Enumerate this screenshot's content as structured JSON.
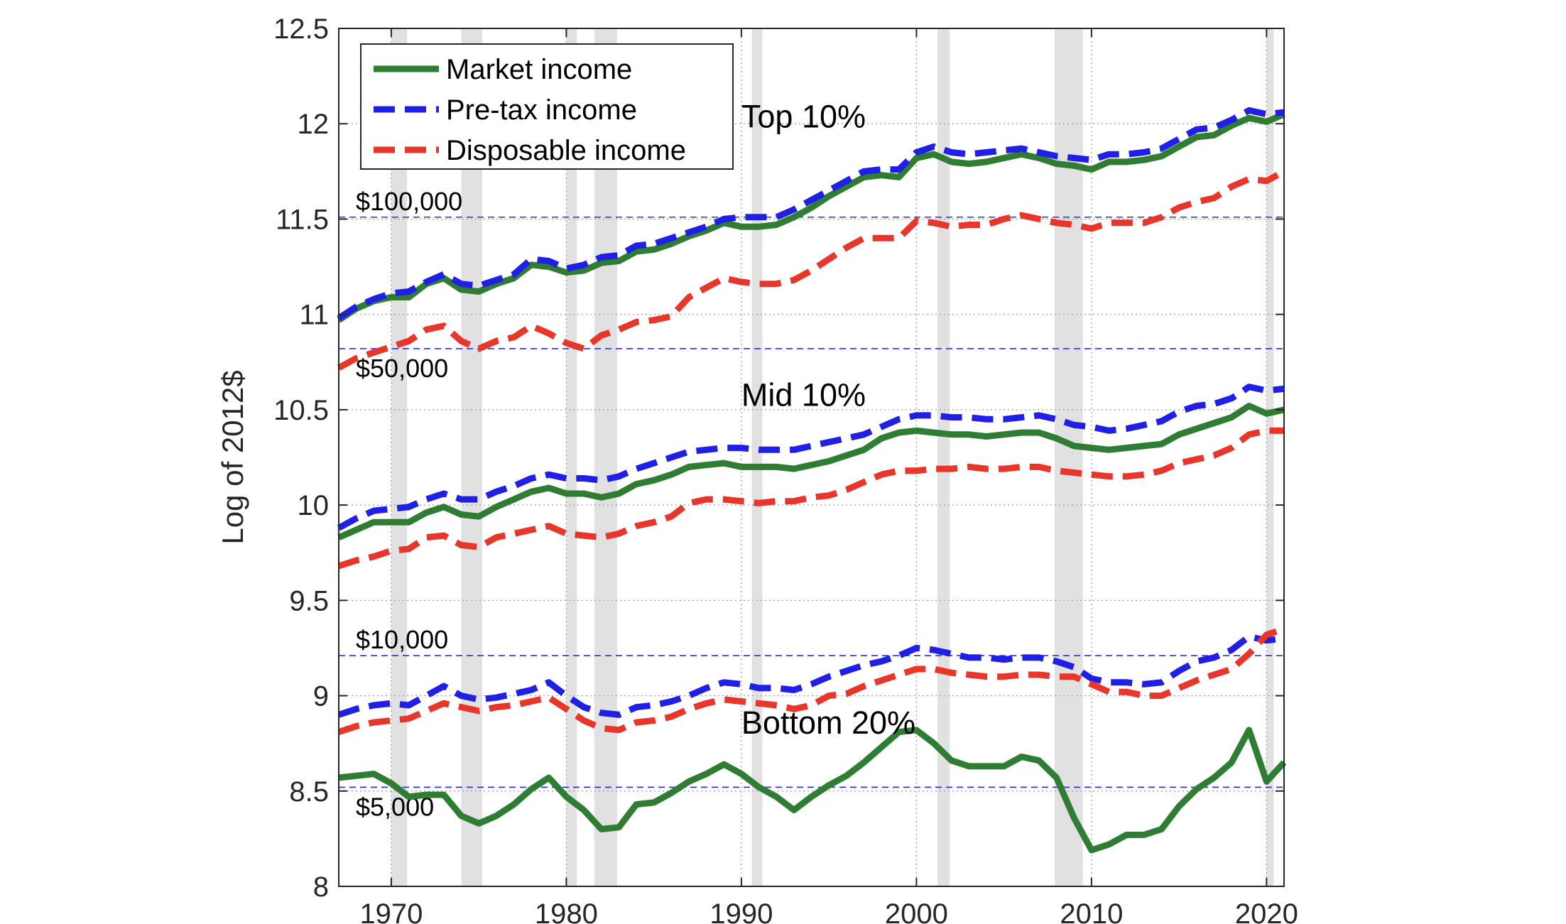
{
  "chart_data": {
    "type": "line",
    "title": "",
    "xlabel": "",
    "ylabel": "Log of 2012$",
    "xlim": [
      1967,
      2021
    ],
    "ylim": [
      8,
      12.5
    ],
    "xticks": [
      1970,
      1980,
      1990,
      2000,
      2010,
      2020
    ],
    "yticks": [
      8,
      8.5,
      9,
      9.5,
      10,
      10.5,
      11,
      11.5,
      12,
      12.5
    ],
    "ytick_labels": [
      "8",
      "8.5",
      "9",
      "9.5",
      "10",
      "10.5",
      "11",
      "11.5",
      "12",
      "12.5"
    ],
    "grid": "dotted",
    "legend_position": "top-left",
    "legend": [
      {
        "name": "Market income",
        "color": "#2e7d32",
        "style": "solid"
      },
      {
        "name": "Pre-tax income",
        "color": "#1f1fe6",
        "style": "dashed"
      },
      {
        "name": "Disposable income",
        "color": "#e8362b",
        "style": "dashed"
      }
    ],
    "recession_shading": [
      [
        1970,
        1970.9
      ],
      [
        1974,
        1975.2
      ],
      [
        1980,
        1980.6
      ],
      [
        1981.6,
        1982.9
      ],
      [
        1990.6,
        1991.2
      ],
      [
        2001.2,
        2001.9
      ],
      [
        2007.9,
        2009.5
      ],
      [
        2020.0,
        2020.4
      ]
    ],
    "reference_lines": [
      {
        "label": "$100,000",
        "y": 11.51
      },
      {
        "label": "$50,000",
        "y": 10.82
      },
      {
        "label": "$10,000",
        "y": 9.21
      },
      {
        "label": "$5,000",
        "y": 8.52
      }
    ],
    "group_labels": [
      {
        "text": "Top 10%",
        "x": 1990,
        "y": 11.98
      },
      {
        "text": "Mid 10%",
        "x": 1990,
        "y": 10.52
      },
      {
        "text": "Bottom 20%",
        "x": 1990,
        "y": 8.8
      }
    ],
    "x": [
      1967,
      1968,
      1969,
      1970,
      1971,
      1972,
      1973,
      1974,
      1975,
      1976,
      1977,
      1978,
      1979,
      1980,
      1981,
      1982,
      1983,
      1984,
      1985,
      1986,
      1987,
      1988,
      1989,
      1990,
      1991,
      1992,
      1993,
      1994,
      1995,
      1996,
      1997,
      1998,
      1999,
      2000,
      2001,
      2002,
      2003,
      2004,
      2005,
      2006,
      2007,
      2008,
      2009,
      2010,
      2011,
      2012,
      2013,
      2014,
      2015,
      2016,
      2017,
      2018,
      2019,
      2020,
      2021
    ],
    "series": [
      {
        "name": "Market income",
        "group": "Top 10%",
        "color": "#2e7d32",
        "style": "solid",
        "values": [
          10.97,
          11.03,
          11.07,
          11.09,
          11.09,
          11.16,
          11.19,
          11.13,
          11.12,
          11.16,
          11.19,
          11.26,
          11.25,
          11.22,
          11.23,
          11.27,
          11.28,
          11.33,
          11.34,
          11.37,
          11.41,
          11.44,
          11.48,
          11.46,
          11.46,
          11.47,
          11.51,
          11.56,
          11.62,
          11.67,
          11.72,
          11.73,
          11.72,
          11.82,
          11.84,
          11.8,
          11.79,
          11.8,
          11.82,
          11.84,
          11.82,
          11.79,
          11.78,
          11.76,
          11.8,
          11.8,
          11.81,
          11.83,
          11.88,
          11.93,
          11.94,
          11.99,
          12.03,
          12.01,
          12.05
        ]
      },
      {
        "name": "Pre-tax income",
        "group": "Top 10%",
        "color": "#1f1fe6",
        "style": "dashed",
        "values": [
          10.98,
          11.04,
          11.08,
          11.11,
          11.12,
          11.17,
          11.21,
          11.16,
          11.15,
          11.18,
          11.21,
          11.29,
          11.28,
          11.24,
          11.26,
          11.3,
          11.31,
          11.36,
          11.37,
          11.4,
          11.43,
          11.46,
          11.5,
          11.51,
          11.51,
          11.51,
          11.55,
          11.6,
          11.65,
          11.7,
          11.75,
          11.76,
          11.76,
          11.85,
          11.88,
          11.85,
          11.84,
          11.85,
          11.86,
          11.87,
          11.85,
          11.83,
          11.82,
          11.81,
          11.84,
          11.84,
          11.85,
          11.87,
          11.92,
          11.97,
          11.98,
          12.02,
          12.07,
          12.05,
          12.06
        ]
      },
      {
        "name": "Disposable income",
        "group": "Top 10%",
        "color": "#e8362b",
        "style": "dashed",
        "values": [
          10.72,
          10.77,
          10.8,
          10.83,
          10.86,
          10.92,
          10.94,
          10.86,
          10.82,
          10.86,
          10.88,
          10.94,
          10.9,
          10.85,
          10.82,
          10.89,
          10.92,
          10.96,
          10.97,
          10.99,
          11.09,
          11.14,
          11.19,
          11.17,
          11.16,
          11.16,
          11.18,
          11.23,
          11.29,
          11.35,
          11.4,
          11.4,
          11.4,
          11.49,
          11.48,
          11.46,
          11.47,
          11.47,
          11.5,
          11.52,
          11.5,
          11.48,
          11.47,
          11.45,
          11.48,
          11.48,
          11.48,
          11.51,
          11.56,
          11.59,
          11.61,
          11.67,
          11.71,
          11.7,
          11.75
        ]
      },
      {
        "name": "Market income",
        "group": "Mid 10%",
        "color": "#2e7d32",
        "style": "solid",
        "values": [
          9.83,
          9.87,
          9.91,
          9.91,
          9.91,
          9.96,
          9.99,
          9.95,
          9.94,
          9.99,
          10.03,
          10.07,
          10.09,
          10.06,
          10.06,
          10.04,
          10.06,
          10.11,
          10.13,
          10.16,
          10.2,
          10.21,
          10.22,
          10.2,
          10.2,
          10.2,
          10.19,
          10.21,
          10.23,
          10.26,
          10.29,
          10.35,
          10.38,
          10.39,
          10.38,
          10.37,
          10.37,
          10.36,
          10.37,
          10.38,
          10.38,
          10.35,
          10.31,
          10.3,
          10.29,
          10.3,
          10.31,
          10.32,
          10.37,
          10.4,
          10.43,
          10.46,
          10.52,
          10.48,
          10.5
        ]
      },
      {
        "name": "Pre-tax income",
        "group": "Mid 10%",
        "color": "#1f1fe6",
        "style": "dashed",
        "values": [
          9.88,
          9.93,
          9.97,
          9.98,
          9.99,
          10.03,
          10.06,
          10.03,
          10.03,
          10.07,
          10.1,
          10.14,
          10.16,
          10.14,
          10.14,
          10.13,
          10.15,
          10.19,
          10.22,
          10.25,
          10.28,
          10.29,
          10.3,
          10.3,
          10.29,
          10.29,
          10.29,
          10.31,
          10.33,
          10.35,
          10.37,
          10.41,
          10.45,
          10.47,
          10.47,
          10.46,
          10.46,
          10.45,
          10.45,
          10.46,
          10.47,
          10.45,
          10.42,
          10.41,
          10.39,
          10.4,
          10.42,
          10.44,
          10.49,
          10.52,
          10.53,
          10.56,
          10.62,
          10.6,
          10.61
        ]
      },
      {
        "name": "Disposable income",
        "group": "Mid 10%",
        "color": "#e8362b",
        "style": "dashed",
        "values": [
          9.68,
          9.71,
          9.73,
          9.76,
          9.77,
          9.83,
          9.84,
          9.79,
          9.78,
          9.83,
          9.85,
          9.87,
          9.89,
          9.85,
          9.84,
          9.83,
          9.85,
          9.89,
          9.91,
          9.94,
          10.01,
          10.03,
          10.03,
          10.02,
          10.01,
          10.02,
          10.02,
          10.04,
          10.05,
          10.08,
          10.12,
          10.16,
          10.18,
          10.18,
          10.19,
          10.19,
          10.2,
          10.19,
          10.19,
          10.2,
          10.2,
          10.18,
          10.17,
          10.16,
          10.15,
          10.15,
          10.16,
          10.18,
          10.22,
          10.24,
          10.26,
          10.3,
          10.37,
          10.39,
          10.39
        ]
      },
      {
        "name": "Pre-tax income",
        "group": "Bottom 20%",
        "color": "#1f1fe6",
        "style": "dashed",
        "values": [
          8.9,
          8.93,
          8.95,
          8.96,
          8.95,
          9.0,
          9.05,
          9.0,
          8.98,
          8.99,
          9.01,
          9.03,
          9.07,
          9.0,
          8.94,
          8.91,
          8.9,
          8.94,
          8.95,
          8.97,
          9.0,
          9.04,
          9.07,
          9.06,
          9.04,
          9.04,
          9.03,
          9.06,
          9.1,
          9.13,
          9.16,
          9.18,
          9.21,
          9.25,
          9.24,
          9.22,
          9.2,
          9.2,
          9.19,
          9.2,
          9.2,
          9.18,
          9.15,
          9.09,
          9.07,
          9.07,
          9.06,
          9.07,
          9.13,
          9.18,
          9.2,
          9.24,
          9.31,
          9.29,
          9.3
        ]
      },
      {
        "name": "Disposable income",
        "group": "Bottom 20%",
        "color": "#e8362b",
        "style": "dashed",
        "values": [
          8.81,
          8.84,
          8.86,
          8.87,
          8.88,
          8.92,
          8.96,
          8.94,
          8.92,
          8.94,
          8.95,
          8.97,
          8.99,
          8.93,
          8.87,
          8.83,
          8.82,
          8.86,
          8.87,
          8.89,
          8.93,
          8.96,
          8.98,
          8.97,
          8.96,
          8.95,
          8.93,
          8.95,
          9.0,
          9.01,
          9.05,
          9.08,
          9.11,
          9.14,
          9.14,
          9.12,
          9.11,
          9.1,
          9.1,
          9.11,
          9.11,
          9.1,
          9.1,
          9.06,
          9.02,
          9.02,
          9.0,
          9.0,
          9.04,
          9.08,
          9.11,
          9.14,
          9.22,
          9.32,
          9.35
        ]
      },
      {
        "name": "Market income",
        "group": "Bottom 20%",
        "color": "#2e7d32",
        "style": "solid",
        "values": [
          8.57,
          8.58,
          8.59,
          8.54,
          8.47,
          8.48,
          8.48,
          8.37,
          8.33,
          8.37,
          8.43,
          8.51,
          8.57,
          8.47,
          8.4,
          8.3,
          8.31,
          8.43,
          8.44,
          8.49,
          8.55,
          8.59,
          8.64,
          8.59,
          8.52,
          8.47,
          8.4,
          8.47,
          8.53,
          8.58,
          8.65,
          8.73,
          8.81,
          8.82,
          8.75,
          8.66,
          8.63,
          8.63,
          8.63,
          8.68,
          8.66,
          8.57,
          8.36,
          8.19,
          8.22,
          8.27,
          8.27,
          8.3,
          8.42,
          8.51,
          8.57,
          8.65,
          8.82,
          8.55,
          8.65
        ]
      }
    ]
  }
}
